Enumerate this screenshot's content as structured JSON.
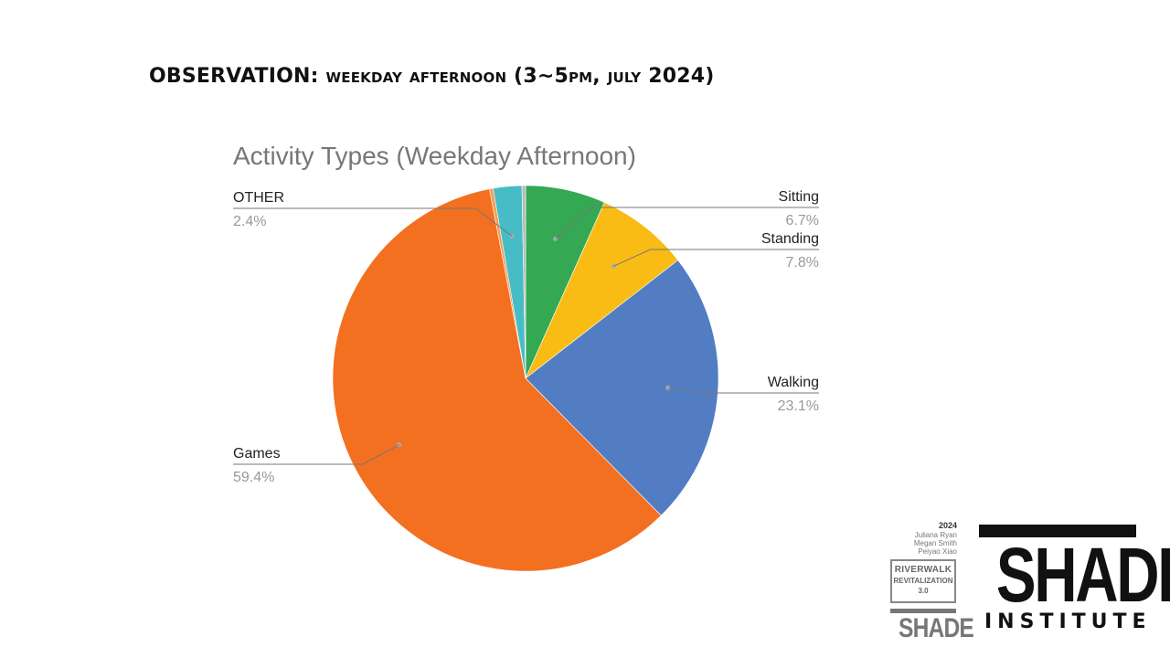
{
  "slide": {
    "heading_lead": "OBSERVATION:",
    "heading_rest": "WEEKDAY AFTERNOON (3~5PM, JULY 2024)"
  },
  "chart_data": {
    "type": "pie",
    "title": "Activity Types (Weekday Afternoon)",
    "start_angle_deg": 0,
    "direction": "clockwise",
    "slices": [
      {
        "label": "Sitting",
        "value": 6.7,
        "display": "6.7%",
        "color": "#34a853"
      },
      {
        "label": "Standing",
        "value": 7.8,
        "display": "7.8%",
        "color": "#f9bc15"
      },
      {
        "label": "Walking",
        "value": 23.1,
        "display": "23.1%",
        "color": "#527dc3"
      },
      {
        "label": "Games",
        "value": 59.4,
        "display": "59.4%",
        "color": "#f37021"
      },
      {
        "label": "",
        "value": 0.3,
        "display": "",
        "color": "#fa9b53"
      },
      {
        "label": "OTHER",
        "value": 2.4,
        "display": "2.4%",
        "color": "#46bdc6"
      },
      {
        "label": "",
        "value": 0.3,
        "display": "",
        "color": "#b8b8b8"
      }
    ],
    "legend": "none"
  },
  "credits": {
    "year": "2024",
    "names": [
      "Juliana Ryan",
      "Megan Smith",
      "Peiyao Xiao"
    ]
  },
  "badge": {
    "line1": "RIVERWALK",
    "line2": "REVITALIZATION",
    "line3": "3.0",
    "logo_word": "SHADE"
  },
  "logo": {
    "word": "SHADE",
    "sub": "INSTITUTE"
  }
}
